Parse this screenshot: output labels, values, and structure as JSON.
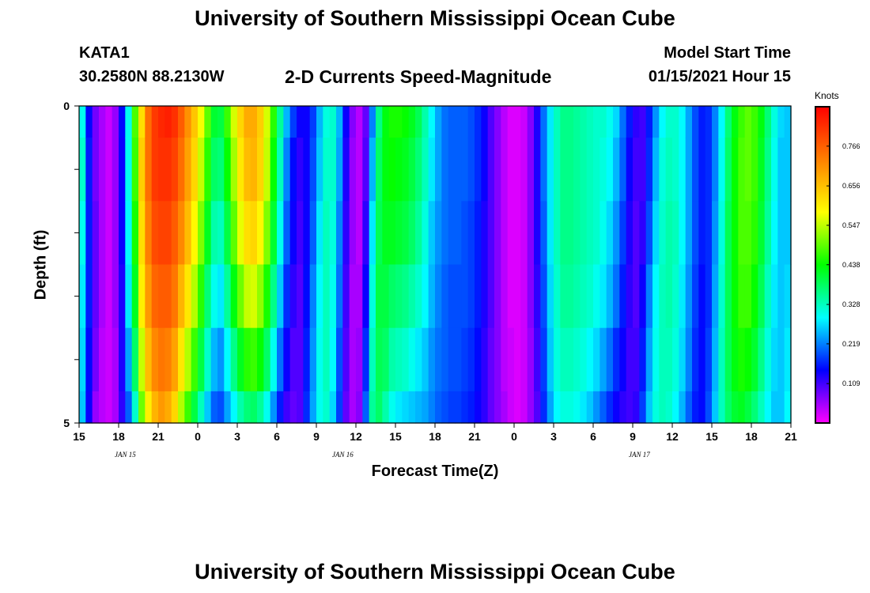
{
  "header": {
    "title": "University of Southern Mississippi Ocean Cube",
    "station_id": "KATA1",
    "coordinates": "30.2580N 88.2130W",
    "subtitle": "2-D Currents Speed-Magnitude",
    "model_start_label": "Model Start Time",
    "model_start_value": "01/15/2021 Hour 15"
  },
  "footer": {
    "title": "University of Southern Mississippi Ocean Cube"
  },
  "colorbar": {
    "units": "Knots",
    "ticks": [
      0.109,
      0.219,
      0.328,
      0.438,
      0.547,
      0.656,
      0.766
    ],
    "tick_labels": [
      "0.109",
      "0.219",
      "0.328",
      "0.438",
      "0.547",
      "0.656",
      "0.766"
    ],
    "range": [
      0,
      0.875
    ],
    "colors": [
      "#ff00ff",
      "#0000ff",
      "#00ffff",
      "#00ff00",
      "#ffff00",
      "#ff8000",
      "#ff0000"
    ]
  },
  "chart_data": {
    "type": "heatmap",
    "title": "2-D Currents Speed-Magnitude",
    "xlabel": "Forecast Time(Z)",
    "ylabel": "Depth (ft)",
    "xlim": [
      0,
      54
    ],
    "ylim": [
      5,
      0
    ],
    "x_ticks": [
      0,
      3,
      6,
      9,
      12,
      15,
      18,
      21,
      24,
      27,
      30,
      33,
      36,
      39,
      42,
      45,
      48,
      51,
      54
    ],
    "x_tick_labels": [
      "15",
      "18",
      "21",
      "0",
      "3",
      "6",
      "9",
      "12",
      "15",
      "18",
      "21",
      "0",
      "3",
      "6",
      "9",
      "12",
      "15",
      "18",
      "21"
    ],
    "y_ticks": [
      0,
      1,
      2,
      3,
      4,
      5
    ],
    "y_tick_labels": [
      "0",
      "",
      "",
      "",
      "",
      "5"
    ],
    "date_labels": [
      {
        "x": 3.5,
        "text": "JAN 15"
      },
      {
        "x": 20.0,
        "text": "JAN 16"
      },
      {
        "x": 42.5,
        "text": "JAN 17"
      }
    ],
    "depth_layers": [
      0,
      0.5,
      1.5,
      2.5,
      3.5,
      4.5
    ],
    "time_step_hours": 0.5,
    "column_speeds": [
      [
        0.3,
        0.32,
        0.3,
        0.28,
        0.27,
        0.26
      ],
      [
        0.15,
        0.16,
        0.16,
        0.16,
        0.15,
        0.14
      ],
      [
        0.08,
        0.08,
        0.09,
        0.09,
        0.08,
        0.06
      ],
      [
        0.05,
        0.05,
        0.05,
        0.05,
        0.04,
        0.04
      ],
      [
        0.03,
        0.03,
        0.03,
        0.03,
        0.03,
        0.03
      ],
      [
        0.06,
        0.06,
        0.06,
        0.06,
        0.05,
        0.05
      ],
      [
        0.15,
        0.14,
        0.14,
        0.13,
        0.13,
        0.12
      ],
      [
        0.3,
        0.3,
        0.29,
        0.28,
        0.24,
        0.2
      ],
      [
        0.48,
        0.47,
        0.45,
        0.42,
        0.38,
        0.32
      ],
      [
        0.62,
        0.64,
        0.62,
        0.6,
        0.55,
        0.5
      ],
      [
        0.75,
        0.75,
        0.73,
        0.7,
        0.66,
        0.6
      ],
      [
        0.81,
        0.81,
        0.79,
        0.76,
        0.72,
        0.67
      ],
      [
        0.83,
        0.82,
        0.8,
        0.77,
        0.74,
        0.7
      ],
      [
        0.84,
        0.82,
        0.8,
        0.77,
        0.73,
        0.68
      ],
      [
        0.82,
        0.8,
        0.77,
        0.74,
        0.69,
        0.63
      ],
      [
        0.77,
        0.75,
        0.72,
        0.67,
        0.61,
        0.54
      ],
      [
        0.71,
        0.69,
        0.66,
        0.61,
        0.54,
        0.47
      ],
      [
        0.65,
        0.63,
        0.59,
        0.54,
        0.47,
        0.4
      ],
      [
        0.58,
        0.55,
        0.51,
        0.46,
        0.4,
        0.33
      ],
      [
        0.49,
        0.46,
        0.42,
        0.37,
        0.32,
        0.26
      ],
      [
        0.41,
        0.38,
        0.34,
        0.3,
        0.25,
        0.2
      ],
      [
        0.4,
        0.37,
        0.33,
        0.28,
        0.23,
        0.19
      ],
      [
        0.47,
        0.44,
        0.4,
        0.35,
        0.29,
        0.24
      ],
      [
        0.56,
        0.53,
        0.49,
        0.43,
        0.36,
        0.29
      ],
      [
        0.63,
        0.61,
        0.57,
        0.5,
        0.42,
        0.34
      ],
      [
        0.68,
        0.66,
        0.62,
        0.55,
        0.46,
        0.37
      ],
      [
        0.68,
        0.67,
        0.63,
        0.56,
        0.47,
        0.38
      ],
      [
        0.64,
        0.63,
        0.59,
        0.52,
        0.44,
        0.35
      ],
      [
        0.56,
        0.55,
        0.51,
        0.45,
        0.38,
        0.3
      ],
      [
        0.46,
        0.44,
        0.41,
        0.36,
        0.3,
        0.23
      ],
      [
        0.35,
        0.33,
        0.3,
        0.26,
        0.21,
        0.16
      ],
      [
        0.25,
        0.22,
        0.2,
        0.17,
        0.14,
        0.11
      ],
      [
        0.18,
        0.15,
        0.14,
        0.12,
        0.1,
        0.09
      ],
      [
        0.14,
        0.12,
        0.11,
        0.1,
        0.1,
        0.1
      ],
      [
        0.14,
        0.14,
        0.14,
        0.15,
        0.16,
        0.17
      ],
      [
        0.18,
        0.19,
        0.2,
        0.22,
        0.23,
        0.24
      ],
      [
        0.25,
        0.26,
        0.28,
        0.29,
        0.3,
        0.3
      ],
      [
        0.31,
        0.32,
        0.33,
        0.33,
        0.33,
        0.32
      ],
      [
        0.32,
        0.32,
        0.31,
        0.3,
        0.29,
        0.27
      ],
      [
        0.25,
        0.24,
        0.22,
        0.21,
        0.19,
        0.18
      ],
      [
        0.14,
        0.13,
        0.12,
        0.11,
        0.1,
        0.09
      ],
      [
        0.07,
        0.06,
        0.06,
        0.05,
        0.05,
        0.05
      ],
      [
        0.04,
        0.04,
        0.04,
        0.05,
        0.06,
        0.07
      ],
      [
        0.09,
        0.1,
        0.12,
        0.14,
        0.17,
        0.2
      ],
      [
        0.22,
        0.25,
        0.28,
        0.31,
        0.33,
        0.35
      ],
      [
        0.36,
        0.38,
        0.39,
        0.4,
        0.39,
        0.38
      ],
      [
        0.43,
        0.43,
        0.42,
        0.4,
        0.38,
        0.34
      ],
      [
        0.45,
        0.44,
        0.42,
        0.38,
        0.34,
        0.3
      ],
      [
        0.45,
        0.43,
        0.41,
        0.37,
        0.33,
        0.28
      ],
      [
        0.44,
        0.42,
        0.4,
        0.36,
        0.32,
        0.27
      ],
      [
        0.42,
        0.4,
        0.38,
        0.34,
        0.3,
        0.26
      ],
      [
        0.39,
        0.37,
        0.35,
        0.32,
        0.28,
        0.25
      ],
      [
        0.34,
        0.33,
        0.31,
        0.29,
        0.26,
        0.24
      ],
      [
        0.29,
        0.28,
        0.26,
        0.25,
        0.23,
        0.22
      ],
      [
        0.24,
        0.24,
        0.23,
        0.22,
        0.21,
        0.2
      ],
      [
        0.21,
        0.21,
        0.21,
        0.2,
        0.2,
        0.19
      ],
      [
        0.2,
        0.2,
        0.2,
        0.19,
        0.19,
        0.18
      ],
      [
        0.2,
        0.2,
        0.2,
        0.19,
        0.19,
        0.18
      ],
      [
        0.2,
        0.2,
        0.19,
        0.19,
        0.18,
        0.17
      ],
      [
        0.19,
        0.19,
        0.18,
        0.18,
        0.17,
        0.16
      ],
      [
        0.17,
        0.17,
        0.16,
        0.16,
        0.15,
        0.14
      ],
      [
        0.14,
        0.14,
        0.13,
        0.13,
        0.12,
        0.12
      ],
      [
        0.1,
        0.1,
        0.1,
        0.1,
        0.09,
        0.09
      ],
      [
        0.07,
        0.07,
        0.07,
        0.07,
        0.07,
        0.07
      ],
      [
        0.04,
        0.04,
        0.04,
        0.04,
        0.04,
        0.05
      ],
      [
        0.02,
        0.02,
        0.02,
        0.02,
        0.03,
        0.03
      ],
      [
        0.02,
        0.02,
        0.02,
        0.02,
        0.02,
        0.02
      ],
      [
        0.03,
        0.03,
        0.03,
        0.03,
        0.03,
        0.03
      ],
      [
        0.07,
        0.07,
        0.07,
        0.07,
        0.06,
        0.06
      ],
      [
        0.13,
        0.13,
        0.13,
        0.12,
        0.11,
        0.1
      ],
      [
        0.21,
        0.21,
        0.2,
        0.19,
        0.18,
        0.17
      ],
      [
        0.28,
        0.28,
        0.28,
        0.27,
        0.26,
        0.24
      ],
      [
        0.33,
        0.33,
        0.33,
        0.32,
        0.31,
        0.29
      ],
      [
        0.36,
        0.36,
        0.36,
        0.35,
        0.33,
        0.31
      ],
      [
        0.36,
        0.36,
        0.36,
        0.35,
        0.33,
        0.31
      ],
      [
        0.35,
        0.35,
        0.35,
        0.34,
        0.32,
        0.3
      ],
      [
        0.34,
        0.34,
        0.34,
        0.33,
        0.31,
        0.28
      ],
      [
        0.33,
        0.33,
        0.33,
        0.32,
        0.29,
        0.26
      ],
      [
        0.32,
        0.32,
        0.32,
        0.3,
        0.27,
        0.23
      ],
      [
        0.32,
        0.31,
        0.3,
        0.28,
        0.24,
        0.2
      ],
      [
        0.3,
        0.29,
        0.27,
        0.25,
        0.21,
        0.17
      ],
      [
        0.27,
        0.25,
        0.23,
        0.21,
        0.17,
        0.14
      ],
      [
        0.21,
        0.2,
        0.18,
        0.16,
        0.14,
        0.12
      ],
      [
        0.16,
        0.14,
        0.13,
        0.12,
        0.11,
        0.11
      ],
      [
        0.12,
        0.11,
        0.1,
        0.1,
        0.11,
        0.12
      ],
      [
        0.11,
        0.11,
        0.12,
        0.14,
        0.16,
        0.18
      ],
      [
        0.16,
        0.17,
        0.19,
        0.22,
        0.24,
        0.26
      ],
      [
        0.23,
        0.25,
        0.27,
        0.29,
        0.3,
        0.31
      ],
      [
        0.29,
        0.31,
        0.32,
        0.33,
        0.33,
        0.33
      ],
      [
        0.32,
        0.33,
        0.34,
        0.34,
        0.33,
        0.32
      ],
      [
        0.32,
        0.32,
        0.33,
        0.32,
        0.31,
        0.29
      ],
      [
        0.29,
        0.29,
        0.29,
        0.28,
        0.27,
        0.25
      ],
      [
        0.24,
        0.24,
        0.24,
        0.23,
        0.22,
        0.2
      ],
      [
        0.19,
        0.19,
        0.19,
        0.18,
        0.17,
        0.16
      ],
      [
        0.16,
        0.16,
        0.16,
        0.15,
        0.15,
        0.15
      ],
      [
        0.17,
        0.17,
        0.17,
        0.17,
        0.18,
        0.19
      ],
      [
        0.22,
        0.22,
        0.23,
        0.24,
        0.25,
        0.26
      ],
      [
        0.29,
        0.3,
        0.31,
        0.32,
        0.33,
        0.33
      ],
      [
        0.37,
        0.38,
        0.39,
        0.39,
        0.39,
        0.38
      ],
      [
        0.43,
        0.44,
        0.44,
        0.44,
        0.43,
        0.41
      ],
      [
        0.47,
        0.48,
        0.48,
        0.47,
        0.45,
        0.42
      ],
      [
        0.49,
        0.49,
        0.48,
        0.47,
        0.44,
        0.4
      ],
      [
        0.47,
        0.47,
        0.46,
        0.44,
        0.41,
        0.37
      ],
      [
        0.43,
        0.42,
        0.41,
        0.39,
        0.36,
        0.33
      ],
      [
        0.37,
        0.36,
        0.35,
        0.33,
        0.31,
        0.29
      ],
      [
        0.31,
        0.3,
        0.29,
        0.28,
        0.27,
        0.26
      ],
      [
        0.27,
        0.26,
        0.26,
        0.26,
        0.26,
        0.26
      ],
      [
        0.26,
        0.26,
        0.26,
        0.27,
        0.28,
        0.29
      ]
    ]
  }
}
